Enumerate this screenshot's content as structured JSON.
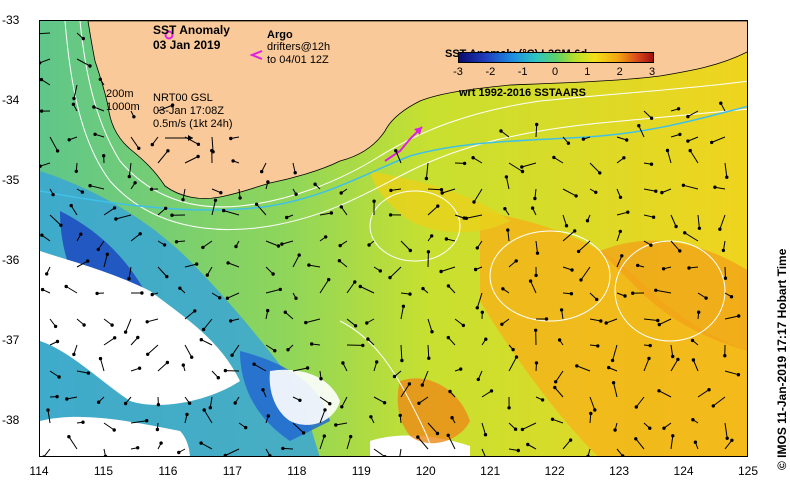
{
  "title": {
    "line1": "SST Anomaly",
    "line2": "03 Jan 2019"
  },
  "legend": {
    "argo_label": "Argo",
    "drifters_line1": "drifters@12h",
    "drifters_line2": "to 04/01 12Z",
    "argo_color": "#e020e0",
    "drifter_color": "#e020e0"
  },
  "info_block": {
    "isobath_200": "200m",
    "isobath_1000": "1000m",
    "product": "NRT00 GSL",
    "product_time": "03-Jan 17:08Z",
    "scale": "0.5m/s (1kt 24h)"
  },
  "colorbar": {
    "title_line1": "SST Anomaly (°C) L3SM-6d",
    "title_line2": "wrt 1992-2016 SSTAARS",
    "ticks": [
      "-3",
      "-2",
      "-1",
      "0",
      "1",
      "2",
      "3"
    ],
    "range": [
      -3,
      3
    ]
  },
  "axes": {
    "x_ticks": [
      "114",
      "115",
      "116",
      "117",
      "118",
      "119",
      "120",
      "121",
      "122",
      "123",
      "124",
      "125"
    ],
    "y_ticks": [
      "-33",
      "-34",
      "-35",
      "-36",
      "-37",
      "-38"
    ],
    "lon_range": [
      114,
      125
    ],
    "lat_range": [
      -33,
      -38.5
    ]
  },
  "credit": "© IMOS 11-Jan-2019 17:17 Hobart Time",
  "colors": {
    "land": "#f9c99a",
    "cold": "#1f5fd0",
    "neutral": "#7fd26a",
    "warm": "#f2c21c",
    "hot": "#f08a18",
    "nodata": "#ffffff",
    "current": "#40c0e8"
  }
}
